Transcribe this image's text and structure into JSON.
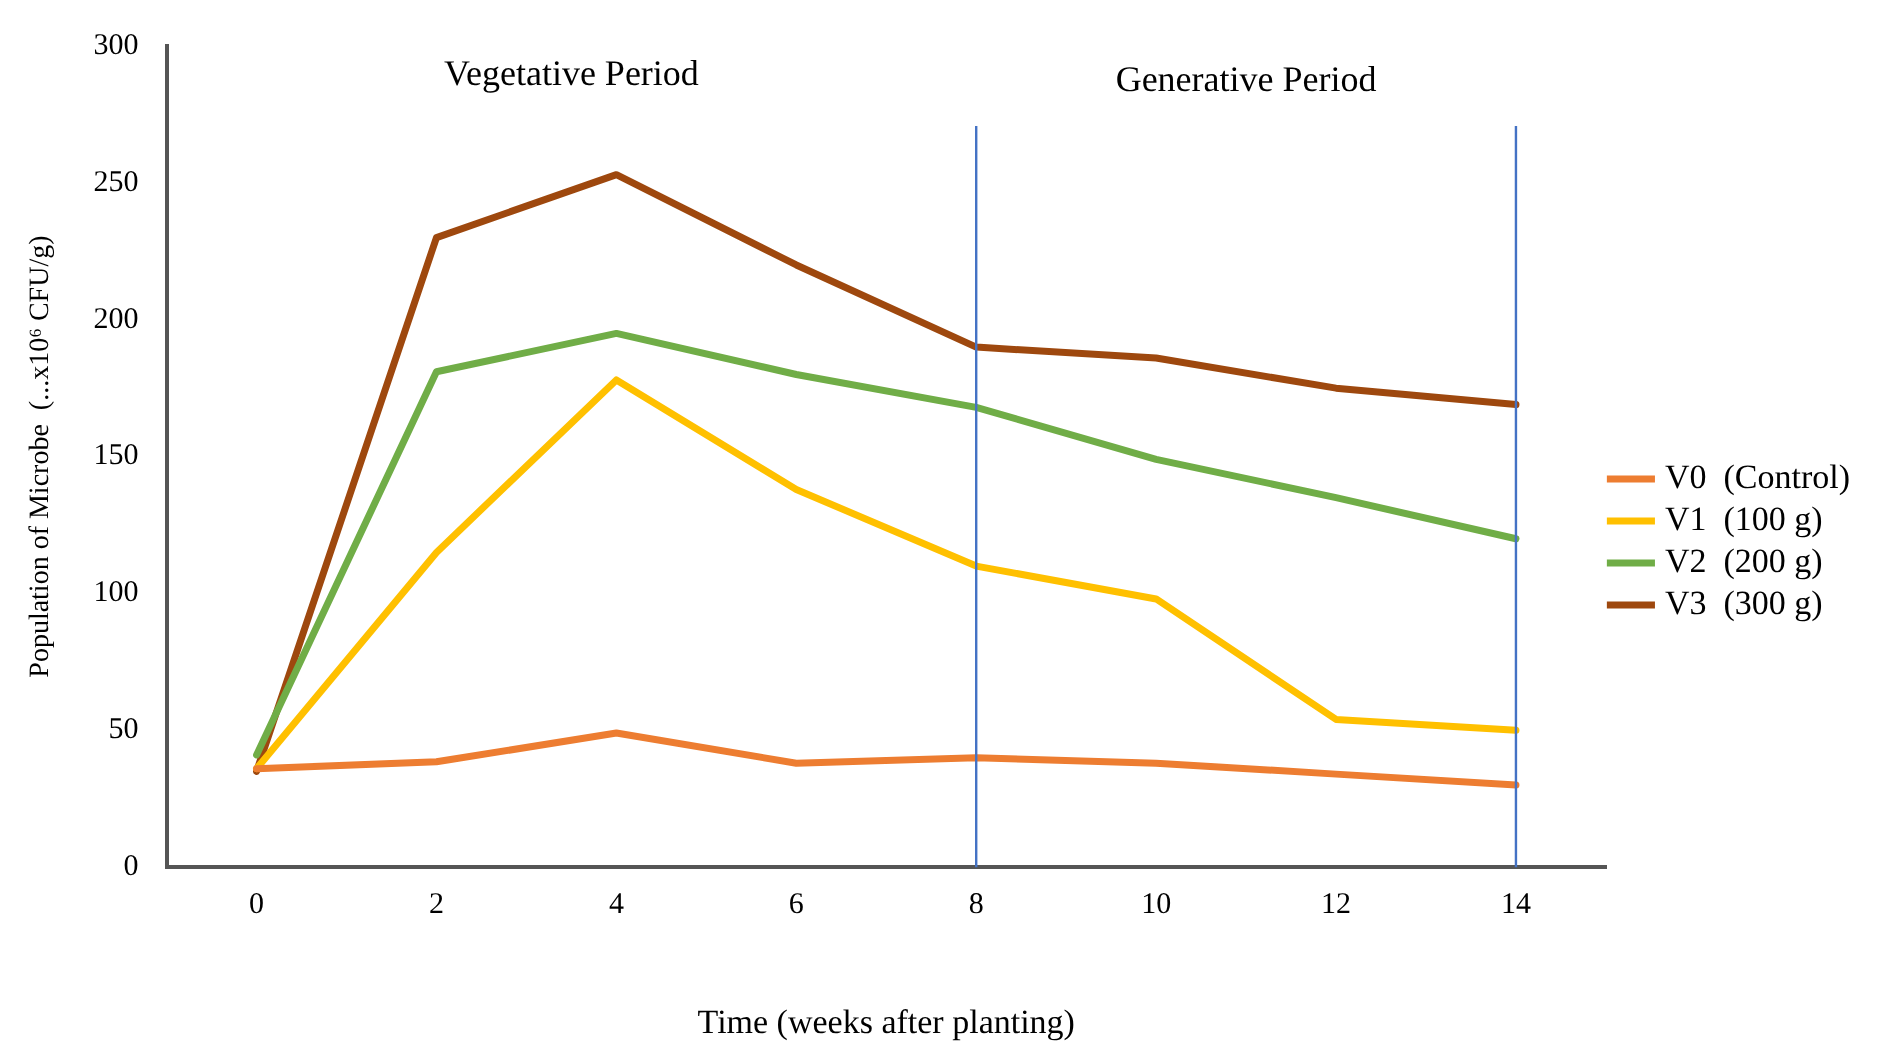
{
  "chart_data": {
    "type": "line",
    "xlabel": "Time (weeks after planting)",
    "ylabel": "Population of Microbe  (...x10⁶ CFU/g)",
    "x": [
      0,
      2,
      4,
      6,
      8,
      10,
      12,
      14
    ],
    "series": [
      {
        "name": "V0  (Control)",
        "color": "#ed7d31",
        "values": [
          36,
          38.5,
          49,
          38,
          40,
          38,
          34,
          30
        ]
      },
      {
        "name": "V1  (100 g)",
        "color": "#ffc000",
        "values": [
          36,
          115,
          178,
          138,
          110,
          98,
          54,
          50
        ]
      },
      {
        "name": "V2  (200 g)",
        "color": "#70ad47",
        "values": [
          41,
          181,
          195,
          180,
          168,
          149,
          135,
          120
        ]
      },
      {
        "name": "V3  (300 g)",
        "color": "#9e480e",
        "values": [
          35,
          230,
          253,
          220,
          190,
          186,
          175,
          169
        ]
      }
    ],
    "xlim": [
      -1,
      15
    ],
    "xticks": [
      0,
      2,
      4,
      6,
      8,
      10,
      12,
      14
    ],
    "ylim": [
      0,
      300
    ],
    "yticks": [
      0,
      50,
      100,
      150,
      200,
      250,
      300
    ],
    "ref_lines": [
      {
        "axis": "x",
        "value": 8,
        "color": "#4472c4"
      },
      {
        "axis": "x",
        "value": 14,
        "color": "#4472c4"
      }
    ],
    "annotations": [
      "Vegetative Period",
      "Generative Period"
    ],
    "grid": false,
    "legend": "right",
    "marker": "none",
    "line_style": "solid"
  }
}
